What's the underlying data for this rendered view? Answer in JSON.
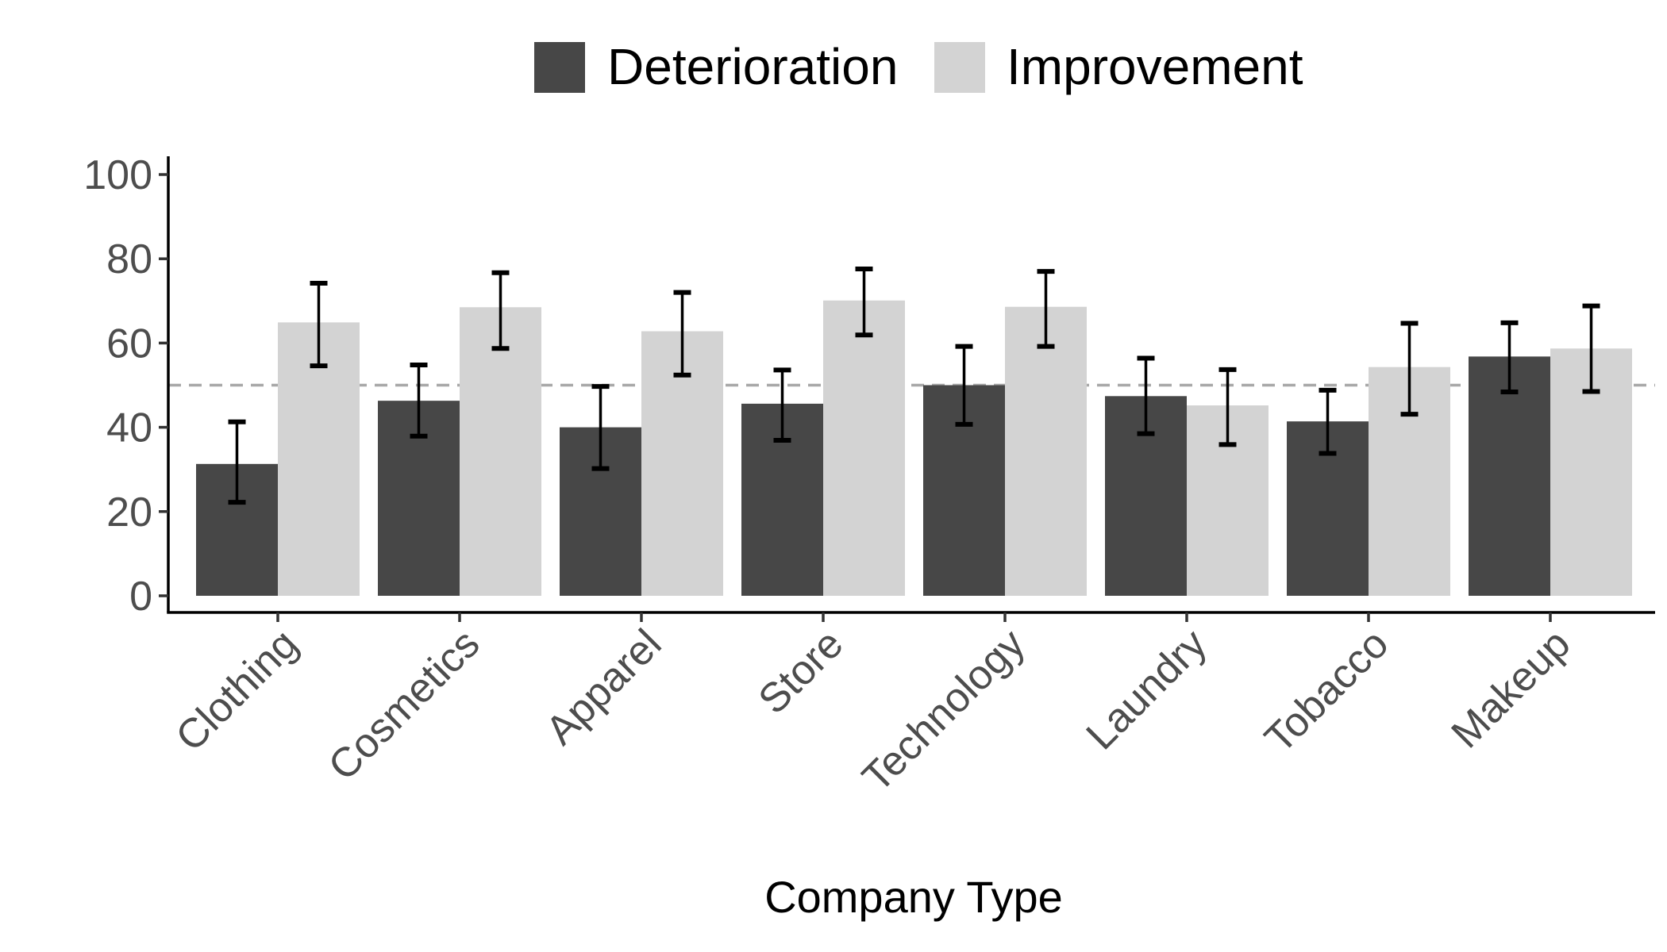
{
  "chart_data": {
    "type": "bar",
    "title": "",
    "xlabel": "Company Type",
    "ylabel": "",
    "ylim": [
      0,
      100
    ],
    "yticks": [
      0,
      20,
      40,
      60,
      80,
      100
    ],
    "reference_line": 50,
    "grid": false,
    "legend_position": "top",
    "categories": [
      "Clothing",
      "Cosmetics",
      "Apparel",
      "Store",
      "Technology",
      "Laundry",
      "Tobacco",
      "Makeup"
    ],
    "series": [
      {
        "name": "Deterioration",
        "color": "#474747",
        "values": [
          31.3,
          46.3,
          40.0,
          45.6,
          50.0,
          47.4,
          41.4,
          56.8
        ],
        "error_low": [
          22.2,
          37.9,
          30.2,
          36.9,
          40.7,
          38.5,
          33.8,
          48.4
        ],
        "error_high": [
          41.3,
          54.8,
          49.7,
          53.6,
          59.2,
          56.4,
          48.8,
          64.8
        ]
      },
      {
        "name": "Improvement",
        "color": "#d3d3d3",
        "values": [
          64.9,
          68.5,
          62.8,
          70.1,
          68.6,
          45.2,
          54.3,
          58.7
        ],
        "error_low": [
          54.6,
          58.7,
          52.4,
          61.9,
          59.2,
          35.9,
          43.1,
          48.5
        ],
        "error_high": [
          74.2,
          76.7,
          72.0,
          77.6,
          77.0,
          53.7,
          64.7,
          68.8
        ]
      }
    ]
  }
}
